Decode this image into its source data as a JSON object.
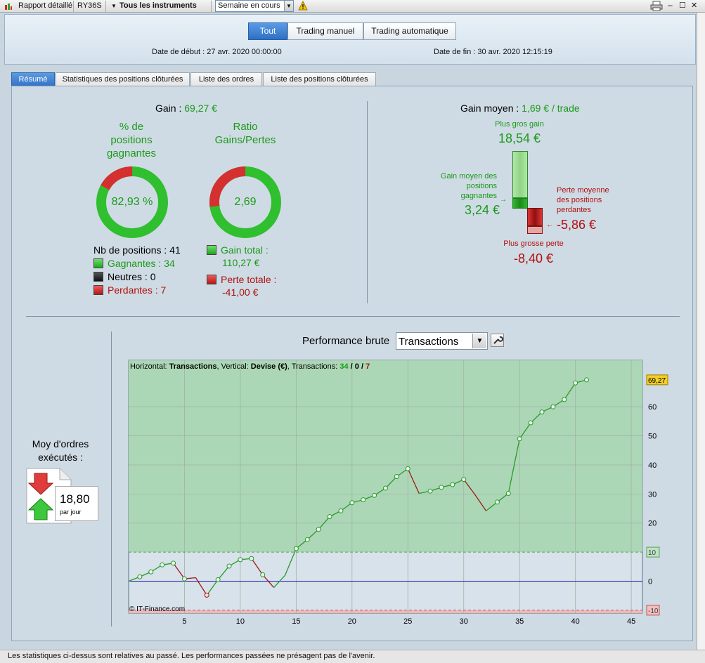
{
  "toolbar": {
    "report_label": "Rapport détaillé",
    "symbol": "RY36S",
    "instruments_label": "Tous les instruments",
    "period_value": "Semaine en cours"
  },
  "modes": {
    "all": "Tout",
    "manual": "Trading manuel",
    "auto": "Trading automatique"
  },
  "dates": {
    "start_label": "Date de début :",
    "start_value": "27 avr. 2020 00:00:00",
    "end_label": "Date de fin :",
    "end_value": "30 avr. 2020 12:15:19"
  },
  "tabs": [
    "Résumé",
    "Statistiques des positions clôturées",
    "Liste des ordres",
    "Liste des positions clôturées"
  ],
  "summary": {
    "gain_label": "Gain :",
    "gain_value": "69,27 €",
    "pct_title_1": "% de",
    "pct_title_2": "positions",
    "pct_title_3": "gagnantes",
    "pct_value": "82,93 %",
    "pct_fraction": 0.8293,
    "ratio_title_1": "Ratio",
    "ratio_title_2": "Gains/Pertes",
    "ratio_value": "2,69",
    "ratio_fraction": 0.7289,
    "nb_positions": "Nb de positions : 41",
    "gagnantes": "Gagnantes : 34",
    "neutres": "Neutres : 0",
    "perdantes": "Perdantes : 7",
    "gain_total_label": "Gain total :",
    "gain_total_value": "110,27 €",
    "perte_totale_label": "Perte totale :",
    "perte_totale_value": "-41,00 €"
  },
  "gain_moyen": {
    "label": "Gain moyen :",
    "value": "1,69 € / trade",
    "gros_gain_label": "Plus gros gain",
    "gros_gain_value": "18,54 €",
    "avg_win_label_1": "Gain moyen des",
    "avg_win_label_2": "positions",
    "avg_win_label_3": "gagnantes",
    "avg_win_value": "3,24 €",
    "avg_loss_label_1": "Perte moyenne",
    "avg_loss_label_2": "des positions",
    "avg_loss_label_3": "perdantes",
    "avg_loss_value": "-5,86 €",
    "grosse_perte_label": "Plus grosse perte",
    "grosse_perte_value": "-8,40 €"
  },
  "orders": {
    "title_1": "Moy d'ordres",
    "title_2": "exécutés :",
    "value": "18,80",
    "unit": "par jour"
  },
  "performance": {
    "title": "Performance brute",
    "select_value": "Transactions"
  },
  "chart_data": {
    "type": "line",
    "header_prefix": "Horizontal: ",
    "header_h": "Transactions",
    "header_mid": ", Vertical: ",
    "header_v": "Devise (€)",
    "header_tr": ", Transactions: ",
    "wins": "34",
    "neutral": "0",
    "losses": "7",
    "copyright": "© IT-Finance.com",
    "last_value_label": "69,27",
    "x": [
      0,
      1,
      2,
      3,
      4,
      5,
      6,
      7,
      8,
      9,
      10,
      11,
      12,
      13,
      14,
      15,
      16,
      17,
      18,
      19,
      20,
      21,
      22,
      23,
      24,
      25,
      26,
      27,
      28,
      29,
      30,
      31,
      32,
      33,
      34,
      35,
      36,
      37,
      38,
      39,
      40,
      41
    ],
    "y": [
      0,
      1.5,
      3.2,
      5.6,
      6.2,
      0.8,
      1.2,
      -4.8,
      0.5,
      5.2,
      7.4,
      7.8,
      2.2,
      -2.2,
      2.0,
      11.2,
      14.3,
      17.8,
      22.2,
      24.2,
      27.0,
      28.0,
      29.5,
      32.0,
      36.0,
      38.7,
      30.2,
      31.0,
      32.3,
      33.2,
      35.0,
      29.8,
      24.2,
      27.2,
      30.2,
      49.0,
      54.5,
      58.2,
      60.0,
      62.5,
      68.2,
      69.27
    ],
    "down_segments": [
      [
        4,
        6
      ],
      [
        6,
        7
      ],
      [
        11,
        13
      ],
      [
        25,
        26
      ],
      [
        30,
        32
      ]
    ],
    "xlim": [
      0,
      46
    ],
    "ylim": [
      -11,
      76
    ],
    "x_ticks": [
      5,
      10,
      15,
      20,
      25,
      30,
      35,
      40,
      45
    ],
    "y_ticks": [
      0,
      20,
      30,
      40,
      50,
      60
    ],
    "y_ref_ticks": [
      10,
      -10
    ],
    "series_color_up": "#2a9a2a",
    "series_color_down": "#a01818"
  }
}
